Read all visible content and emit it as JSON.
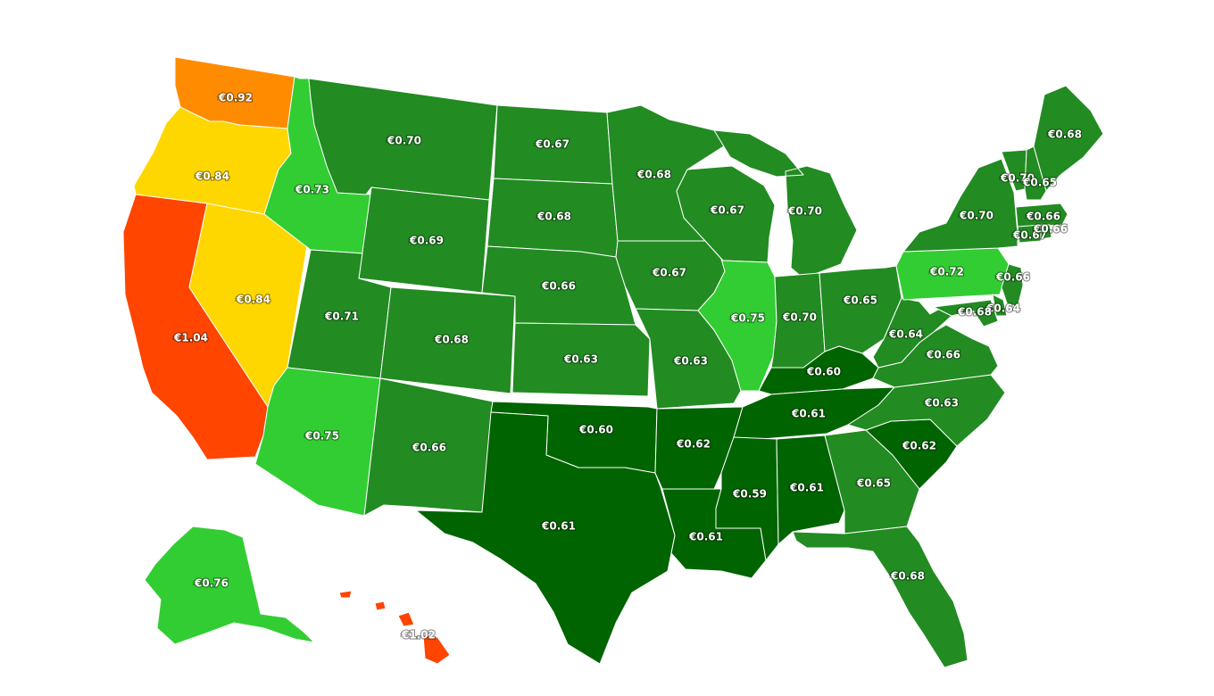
{
  "map": {
    "type": "choropleth",
    "region": "United States",
    "color_scale": {
      "darkgreen": "#006400",
      "green": "#228B22",
      "lightgreen": "#32CD32",
      "yellow": "#FFD700",
      "orange": "#FF8C00",
      "red": "#FF4500"
    },
    "states": [
      {
        "id": "WA",
        "value": "€0.92",
        "color": "orange"
      },
      {
        "id": "OR",
        "value": "€0.84",
        "color": "yellow"
      },
      {
        "id": "CA",
        "value": "€1.04",
        "color": "red"
      },
      {
        "id": "NV",
        "value": "€0.84",
        "color": "yellow"
      },
      {
        "id": "ID",
        "value": "€0.73",
        "color": "lightgreen"
      },
      {
        "id": "MT",
        "value": "€0.70",
        "color": "green"
      },
      {
        "id": "WY",
        "value": "€0.69",
        "color": "green"
      },
      {
        "id": "UT",
        "value": "€0.71",
        "color": "green"
      },
      {
        "id": "AZ",
        "value": "€0.75",
        "color": "lightgreen"
      },
      {
        "id": "CO",
        "value": "€0.68",
        "color": "green"
      },
      {
        "id": "NM",
        "value": "€0.66",
        "color": "green"
      },
      {
        "id": "ND",
        "value": "€0.67",
        "color": "green"
      },
      {
        "id": "SD",
        "value": "€0.68",
        "color": "green"
      },
      {
        "id": "NE",
        "value": "€0.66",
        "color": "green"
      },
      {
        "id": "KS",
        "value": "€0.63",
        "color": "green"
      },
      {
        "id": "OK",
        "value": "€0.60",
        "color": "darkgreen"
      },
      {
        "id": "TX",
        "value": "€0.61",
        "color": "darkgreen"
      },
      {
        "id": "MN",
        "value": "€0.68",
        "color": "green"
      },
      {
        "id": "IA",
        "value": "€0.67",
        "color": "green"
      },
      {
        "id": "MO",
        "value": "€0.63",
        "color": "green"
      },
      {
        "id": "AR",
        "value": "€0.62",
        "color": "darkgreen"
      },
      {
        "id": "LA",
        "value": "€0.61",
        "color": "darkgreen"
      },
      {
        "id": "WI",
        "value": "€0.67",
        "color": "green"
      },
      {
        "id": "IL",
        "value": "€0.75",
        "color": "lightgreen"
      },
      {
        "id": "MI",
        "value": "€0.70",
        "color": "green"
      },
      {
        "id": "IN",
        "value": "€0.70",
        "color": "green"
      },
      {
        "id": "OH",
        "value": "€0.65",
        "color": "green"
      },
      {
        "id": "KY",
        "value": "€0.60",
        "color": "darkgreen"
      },
      {
        "id": "TN",
        "value": "€0.61",
        "color": "darkgreen"
      },
      {
        "id": "MS",
        "value": "€0.59",
        "color": "darkgreen"
      },
      {
        "id": "AL",
        "value": "€0.61",
        "color": "darkgreen"
      },
      {
        "id": "GA",
        "value": "€0.65",
        "color": "green"
      },
      {
        "id": "FL",
        "value": "€0.68",
        "color": "green"
      },
      {
        "id": "SC",
        "value": "€0.62",
        "color": "darkgreen"
      },
      {
        "id": "NC",
        "value": "€0.63",
        "color": "green"
      },
      {
        "id": "VA",
        "value": "€0.66",
        "color": "green"
      },
      {
        "id": "WV",
        "value": "€0.64",
        "color": "green"
      },
      {
        "id": "PA",
        "value": "€0.72",
        "color": "lightgreen"
      },
      {
        "id": "NY",
        "value": "€0.70",
        "color": "green"
      },
      {
        "id": "VT",
        "value": "€0.70",
        "color": "green"
      },
      {
        "id": "NH",
        "value": "€0.65",
        "color": "green"
      },
      {
        "id": "ME",
        "value": "€0.68",
        "color": "green"
      },
      {
        "id": "MA",
        "value": "€0.66",
        "color": "green"
      },
      {
        "id": "CT",
        "value": "€0.67",
        "color": "green"
      },
      {
        "id": "RI",
        "value": "€0.66",
        "color": "green"
      },
      {
        "id": "NJ",
        "value": "€0.66",
        "color": "green"
      },
      {
        "id": "DE",
        "value": "€0.64",
        "color": "green"
      },
      {
        "id": "MD",
        "value": "€0.68",
        "color": "green"
      },
      {
        "id": "AK",
        "value": "€0.76",
        "color": "lightgreen"
      },
      {
        "id": "HI",
        "value": "€1.02",
        "color": "red"
      }
    ]
  }
}
